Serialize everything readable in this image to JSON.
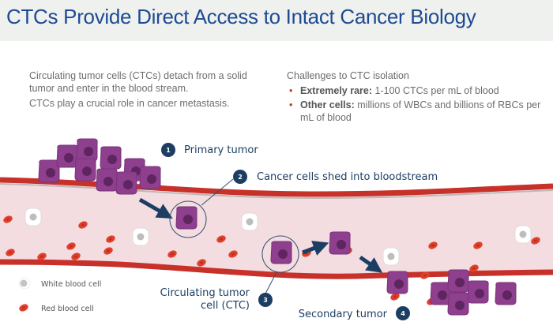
{
  "title": "CTCs Provide Direct Access to Intact Cancer Biology",
  "intro": {
    "paragraphs": [
      "Circulating tumor cells (CTCs) detach from a solid tumor and enter in the blood stream.",
      "CTCs play a crucial role in cancer metastasis."
    ]
  },
  "challenges": {
    "heading": "Challenges to CTC isolation",
    "items": [
      {
        "bold": "Extremely rare:",
        "text": " 1-100 CTCs per mL of blood"
      },
      {
        "bold": "Other cells:",
        "text": " millions of WBCs and billions of RBCs per mL of blood"
      }
    ]
  },
  "steps": [
    {
      "number": "1",
      "label": "Primary tumor"
    },
    {
      "number": "2",
      "label": "Cancer cells shed into bloodstream"
    },
    {
      "number": "3",
      "label_line1": "Circulating tumor",
      "label_line2": "cell (CTC)"
    },
    {
      "number": "4",
      "label": "Secondary tumor"
    }
  ],
  "legend": [
    {
      "label": "White blood cell"
    },
    {
      "label": "Red blood cell"
    }
  ],
  "colors": {
    "title": "#1f4a93",
    "step_badge": "#1d3e63",
    "vessel_wall": "#c8302a",
    "vessel_lumen": "#f3dde0",
    "tumor_cell": "#8e3f8e",
    "tumor_nucleus": "#5e2560",
    "red_cell": "#e0402c"
  }
}
